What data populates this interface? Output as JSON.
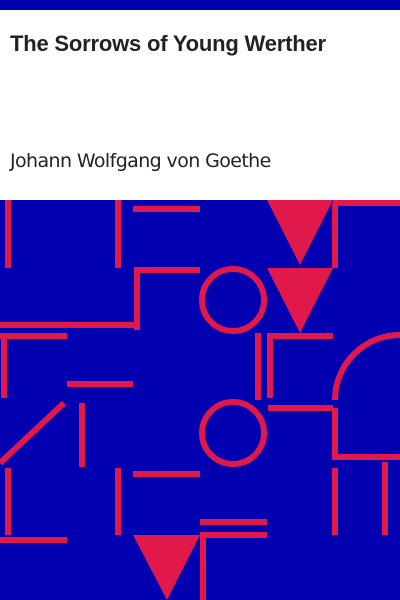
{
  "cover": {
    "title": "The Sorrows of Young Werther",
    "author": "Johann Wolfgang von Goethe",
    "colors": {
      "background": "#ffffff",
      "band": "#0000b0",
      "art_background": "#0000b0",
      "art_shapes": "#e0194a",
      "text": "#222222"
    }
  }
}
